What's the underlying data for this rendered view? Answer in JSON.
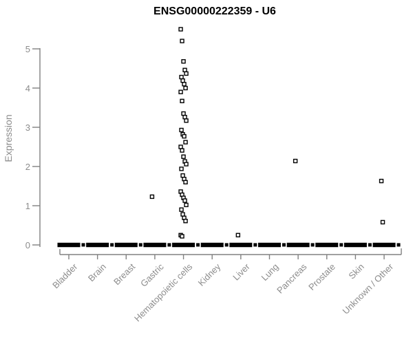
{
  "chart_data": {
    "type": "scatter",
    "title": "ENSG00000222359 - U6",
    "xlabel": "",
    "ylabel": "Expression",
    "ylim": [
      0,
      5.5
    ],
    "yticks": [
      0,
      1,
      2,
      3,
      4,
      5
    ],
    "grid": false,
    "legend": "none",
    "marker": "open-square",
    "note": "every category shows a dense cluster of points at expression 0 (rendered as a thick black dash)",
    "categories": [
      "Bladder",
      "Brain",
      "Breast",
      "Gastric",
      "Hematopoietic cells",
      "Kidney",
      "Liver",
      "Lung",
      "Pancreas",
      "Prostate",
      "Skin",
      "Unknown / Other"
    ],
    "series": [
      {
        "category": "Bladder",
        "zero_cluster": true,
        "values": []
      },
      {
        "category": "Brain",
        "zero_cluster": true,
        "values": []
      },
      {
        "category": "Breast",
        "zero_cluster": true,
        "values": []
      },
      {
        "category": "Gastric",
        "zero_cluster": true,
        "values": [
          1.23
        ]
      },
      {
        "category": "Hematopoietic cells",
        "zero_cluster": true,
        "values": [
          5.5,
          5.2,
          4.68,
          4.46,
          4.37,
          4.28,
          4.19,
          4.1,
          4.0,
          3.9,
          3.67,
          3.35,
          3.26,
          3.17,
          2.93,
          2.82,
          2.77,
          2.62,
          2.5,
          2.41,
          2.25,
          2.13,
          2.06,
          1.94,
          1.77,
          1.68,
          1.6,
          1.36,
          1.28,
          1.2,
          1.13,
          1.02,
          0.9,
          0.78,
          0.69,
          0.61,
          0.25,
          0.22
        ]
      },
      {
        "category": "Kidney",
        "zero_cluster": true,
        "values": []
      },
      {
        "category": "Liver",
        "zero_cluster": true,
        "values": [
          0.25
        ]
      },
      {
        "category": "Lung",
        "zero_cluster": true,
        "values": []
      },
      {
        "category": "Pancreas",
        "zero_cluster": true,
        "values": [
          2.14
        ]
      },
      {
        "category": "Prostate",
        "zero_cluster": true,
        "values": []
      },
      {
        "category": "Skin",
        "zero_cluster": true,
        "values": []
      },
      {
        "category": "Unknown / Other",
        "zero_cluster": true,
        "values": [
          1.63,
          0.58
        ]
      }
    ],
    "colors": {
      "marker_stroke": "#000000",
      "marker_fill": "#ffffff",
      "zero_cluster": "#000000",
      "axis": "#808080",
      "tick_label": "#8c8c8c",
      "title": "#000000",
      "background": "#ffffff"
    }
  }
}
